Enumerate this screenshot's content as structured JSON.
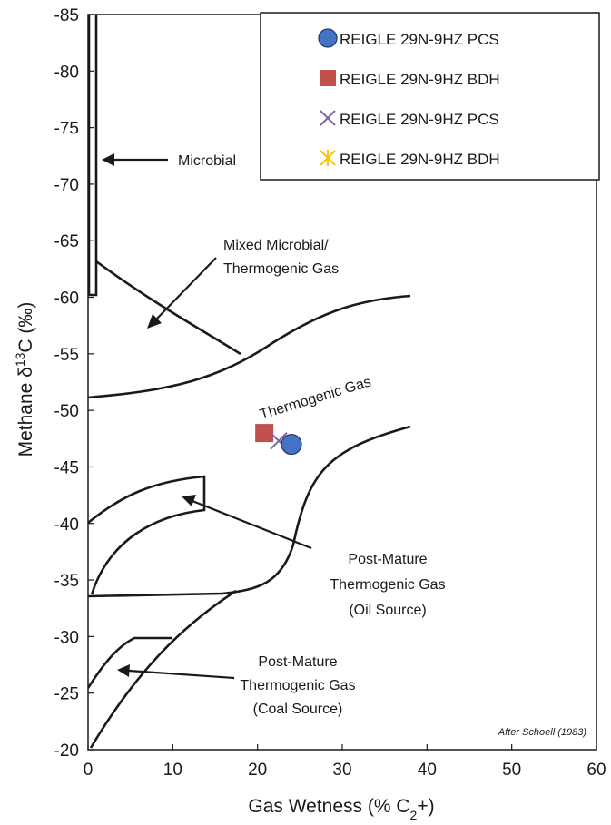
{
  "chart_data": {
    "type": "scatter",
    "title": "",
    "xlabel": "Gas Wetness (% C₂+)",
    "ylabel": "Methane δ¹³C (‰)",
    "xlim": [
      0,
      60
    ],
    "ylim": [
      -20,
      -85
    ],
    "x_ticks": [
      "0",
      "10",
      "20",
      "30",
      "40",
      "50",
      "60"
    ],
    "y_ticks": [
      "-85",
      "-80",
      "-75",
      "-70",
      "-65",
      "-60",
      "-55",
      "-50",
      "-45",
      "-40",
      "-35",
      "-30",
      "-25",
      "-20"
    ],
    "grid": false,
    "legend_position": "top-right",
    "series": [
      {
        "name": "REIGLE 29N-9HZ PCS",
        "marker": "circle",
        "color": "#4472c4",
        "x": [
          24.0
        ],
        "y": [
          -47.0
        ]
      },
      {
        "name": "REIGLE 29N-9HZ BDH",
        "marker": "square",
        "color": "#c0504d",
        "x": [
          20.8
        ],
        "y": [
          -48.0
        ]
      },
      {
        "name": "REIGLE 29N-9HZ PCS",
        "marker": "x",
        "color": "#8064a2",
        "x": [
          22.5
        ],
        "y": [
          -47.3
        ]
      },
      {
        "name": "REIGLE 29N-9HZ BDH",
        "marker": "star",
        "color": "#f7c600",
        "x": [],
        "y": []
      }
    ],
    "regions": [
      {
        "label": "Microbial",
        "label_x": 12.0,
        "label_y": -72.0,
        "arrow_to": [
          1.5,
          -72.0
        ]
      },
      {
        "label_lines": [
          "Mixed Microbial/",
          "Thermogenic Gas"
        ],
        "label_x": 19.0,
        "label_y": -64.0,
        "arrow_from": [
          13.5,
          -64.0
        ],
        "arrow_to": [
          6.5,
          -57.5
        ]
      },
      {
        "label": "Thermogenic Gas",
        "label_x": 22.0,
        "label_y": -50.0,
        "rotation": -17
      },
      {
        "label_lines": [
          "Post-Mature",
          "Thermogenic Gas",
          "(Oil Source)"
        ],
        "label_x": 31.0,
        "label_y": -38.0,
        "arrow_from": [
          24.0,
          -37.5
        ],
        "arrow_to": [
          10.5,
          -42.3
        ]
      },
      {
        "label_lines": [
          "Post-Mature",
          "Thermogenic Gas",
          "(Coal Source)"
        ],
        "label_x": 17.5,
        "label_y": -27.5,
        "arrow_from": [
          13.5,
          -26.0
        ],
        "arrow_to": [
          3.5,
          -27.3
        ]
      }
    ],
    "annotations": [
      "After Schoell (1983)"
    ]
  }
}
